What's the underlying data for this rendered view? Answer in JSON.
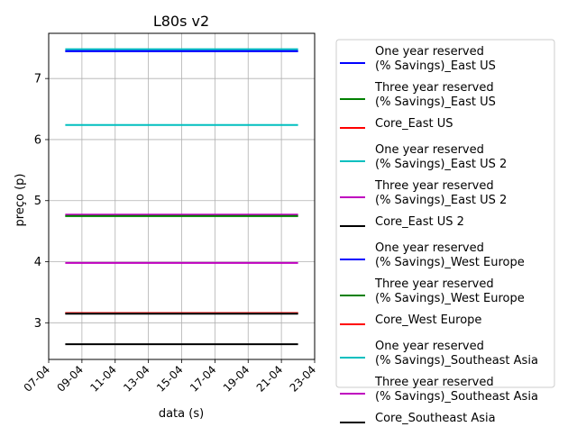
{
  "chart_data": {
    "type": "line",
    "title": "L80s v2",
    "xlabel": "data (s)",
    "ylabel": "preço (p)",
    "x": [
      "2024-04-08",
      "2024-04-22"
    ],
    "x_ticks": [
      "07-04",
      "09-04",
      "11-04",
      "13-04",
      "15-04",
      "17-04",
      "19-04",
      "21-04",
      "23-04"
    ],
    "x_tick_dates": [
      "2024-04-07",
      "2024-04-09",
      "2024-04-11",
      "2024-04-13",
      "2024-04-15",
      "2024-04-17",
      "2024-04-19",
      "2024-04-21",
      "2024-04-23"
    ],
    "xlim": [
      "2024-04-07",
      "2024-04-23"
    ],
    "y_ticks": [
      3,
      4,
      5,
      6,
      7
    ],
    "ylim": [
      2.4,
      7.74
    ],
    "grid": true,
    "legend_position": "outside-right",
    "series": [
      {
        "name": "One year reserved\n(% Savings)_East US",
        "color": "#0000ff",
        "values": [
          7.45,
          7.45
        ]
      },
      {
        "name": "Three year reserved\n(% Savings)_East US",
        "color": "#008000",
        "values": [
          4.75,
          4.75
        ]
      },
      {
        "name": "Core_East US",
        "color": "#ff0000",
        "values": [
          3.16,
          3.16
        ]
      },
      {
        "name": "One year reserved\n(% Savings)_East US 2",
        "color": "#00bfbf",
        "values": [
          7.48,
          7.48
        ]
      },
      {
        "name": "Three year reserved\n(% Savings)_East US 2",
        "color": "#bf00bf",
        "values": [
          4.77,
          4.77
        ]
      },
      {
        "name": "Core_East US 2",
        "color": "#000000",
        "values": [
          2.65,
          2.65
        ]
      },
      {
        "name": "One year reserved\n(% Savings)_West Europe",
        "color": "#0000ff",
        "values": [
          7.45,
          7.45
        ]
      },
      {
        "name": "Three year reserved\n(% Savings)_West Europe",
        "color": "#008000",
        "values": [
          4.75,
          4.75
        ]
      },
      {
        "name": "Core_West Europe",
        "color": "#ff0000",
        "values": [
          3.16,
          3.16
        ]
      },
      {
        "name": "One year reserved\n(% Savings)_Southeast Asia",
        "color": "#00bfbf",
        "values": [
          6.24,
          6.24
        ]
      },
      {
        "name": "Three year reserved\n(% Savings)_Southeast Asia",
        "color": "#bf00bf",
        "values": [
          3.98,
          3.98
        ]
      },
      {
        "name": "Core_Southeast Asia",
        "color": "#000000",
        "values": [
          3.15,
          3.15
        ]
      }
    ]
  }
}
